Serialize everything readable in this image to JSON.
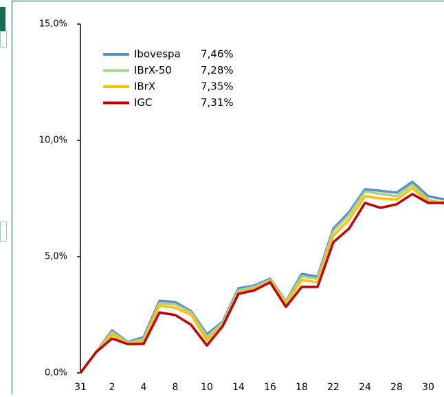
{
  "chart_data": {
    "type": "line",
    "categories": [
      "31",
      null,
      "2",
      null,
      "4",
      null,
      "8",
      null,
      "10",
      null,
      "14",
      null,
      "16",
      null,
      "18",
      null,
      "22",
      null,
      "24",
      null,
      "28",
      null,
      "30",
      null
    ],
    "series": [
      {
        "name": "Ibovespa",
        "label": "7,46%",
        "color": "#5b8fc9",
        "values": [
          0,
          0.9,
          1.83,
          1.33,
          1.54,
          3.1,
          3.05,
          2.66,
          1.66,
          2.2,
          3.64,
          3.76,
          4.05,
          3.08,
          4.26,
          4.14,
          6.21,
          6.92,
          7.9,
          7.83,
          7.75,
          8.22,
          7.6,
          7.46
        ]
      },
      {
        "name": "IBrX-50",
        "label": "7,28%",
        "color": "#a9d18e",
        "values": [
          0,
          0.9,
          1.75,
          1.3,
          1.45,
          3.0,
          2.95,
          2.6,
          1.55,
          2.15,
          3.55,
          3.7,
          4.0,
          3.05,
          4.15,
          4.05,
          6.1,
          6.8,
          7.8,
          7.7,
          7.6,
          8.1,
          7.45,
          7.28
        ]
      },
      {
        "name": "IBrX",
        "label": "7,35%",
        "color": "#ffc000",
        "values": [
          0,
          0.9,
          1.65,
          1.25,
          1.35,
          2.9,
          2.8,
          2.5,
          1.4,
          2.05,
          3.45,
          3.6,
          3.95,
          2.95,
          4.0,
          3.9,
          5.9,
          6.6,
          7.6,
          7.5,
          7.45,
          7.95,
          7.35,
          7.35
        ]
      },
      {
        "name": "IGC",
        "label": "7,31%",
        "color": "#c00000",
        "values": [
          0,
          0.9,
          1.48,
          1.24,
          1.25,
          2.6,
          2.49,
          2.07,
          1.18,
          2.01,
          3.4,
          3.55,
          3.9,
          2.84,
          3.7,
          3.7,
          5.62,
          6.21,
          7.31,
          7.1,
          7.25,
          7.69,
          7.31,
          7.31
        ]
      }
    ],
    "ylim": [
      0,
      15
    ],
    "yticks": [
      {
        "value": 0,
        "label": "0,0%"
      },
      {
        "value": 5,
        "label": "5,0%"
      },
      {
        "value": 10,
        "label": "10,0%"
      },
      {
        "value": 15,
        "label": "15,0%"
      }
    ],
    "legend": "upper left"
  }
}
